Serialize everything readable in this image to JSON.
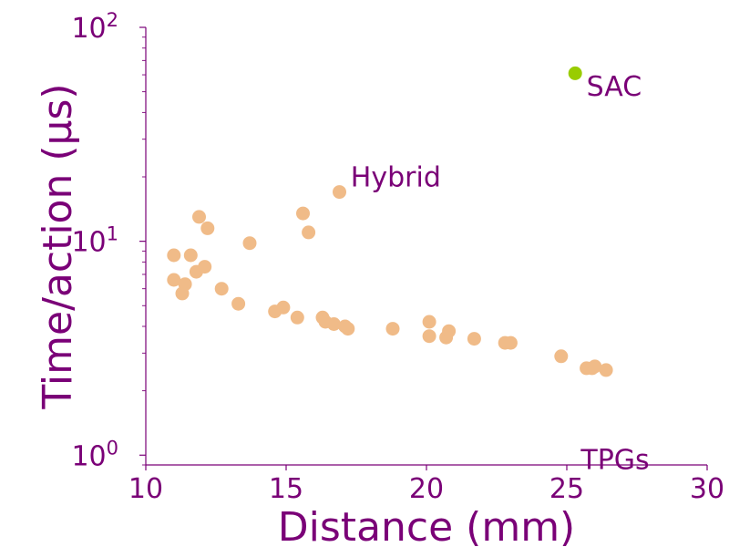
{
  "chart_data": {
    "type": "scatter",
    "title": "",
    "xlabel": "Distance (mm)",
    "ylabel": "Time/action (μs)",
    "xlim": [
      10,
      30
    ],
    "ylim": [
      0.9,
      100
    ],
    "yscale": "log",
    "grid": false,
    "x_ticks": [
      {
        "value": 10,
        "label": "10"
      },
      {
        "value": 15,
        "label": "15"
      },
      {
        "value": 20,
        "label": "20"
      },
      {
        "value": 25,
        "label": "25"
      },
      {
        "value": 30,
        "label": "30"
      }
    ],
    "y_ticks": [
      {
        "value": 1,
        "base": "10",
        "exp": "0"
      },
      {
        "value": 10,
        "base": "10",
        "exp": "1"
      },
      {
        "value": 100,
        "base": "10",
        "exp": "2"
      }
    ],
    "colors": {
      "axis": "#7a0077",
      "tpg": "#f0bb88",
      "sac": "#99cc00"
    },
    "series": [
      {
        "key": "tpg",
        "points": [
          {
            "x": 11.0,
            "y": 8.6
          },
          {
            "x": 11.0,
            "y": 6.6
          },
          {
            "x": 11.3,
            "y": 5.7
          },
          {
            "x": 11.4,
            "y": 6.3
          },
          {
            "x": 11.6,
            "y": 8.6
          },
          {
            "x": 11.8,
            "y": 7.2
          },
          {
            "x": 11.9,
            "y": 13.0
          },
          {
            "x": 12.1,
            "y": 7.6
          },
          {
            "x": 12.2,
            "y": 11.5
          },
          {
            "x": 12.7,
            "y": 6.0
          },
          {
            "x": 13.3,
            "y": 5.1
          },
          {
            "x": 13.7,
            "y": 9.8
          },
          {
            "x": 14.6,
            "y": 4.7
          },
          {
            "x": 14.9,
            "y": 4.9
          },
          {
            "x": 15.4,
            "y": 4.4
          },
          {
            "x": 15.6,
            "y": 13.5
          },
          {
            "x": 15.8,
            "y": 11.0
          },
          {
            "x": 16.3,
            "y": 4.4
          },
          {
            "x": 16.4,
            "y": 4.2
          },
          {
            "x": 16.7,
            "y": 4.1
          },
          {
            "x": 16.9,
            "y": 17.0
          },
          {
            "x": 17.1,
            "y": 4.0
          },
          {
            "x": 17.2,
            "y": 3.9
          },
          {
            "x": 18.8,
            "y": 3.9
          },
          {
            "x": 20.1,
            "y": 4.2
          },
          {
            "x": 20.1,
            "y": 3.6
          },
          {
            "x": 20.7,
            "y": 3.55
          },
          {
            "x": 20.8,
            "y": 3.8
          },
          {
            "x": 21.7,
            "y": 3.5
          },
          {
            "x": 22.8,
            "y": 3.35
          },
          {
            "x": 23.0,
            "y": 3.35
          },
          {
            "x": 24.8,
            "y": 2.9
          },
          {
            "x": 25.7,
            "y": 2.55
          },
          {
            "x": 25.9,
            "y": 2.55
          },
          {
            "x": 26.0,
            "y": 2.6
          },
          {
            "x": 26.4,
            "y": 2.5
          }
        ]
      },
      {
        "key": "sac",
        "points": [
          {
            "x": 25.3,
            "y": 61.0
          }
        ]
      }
    ],
    "annotations": [
      {
        "text": "SAC",
        "x": 25.7,
        "y": 48
      },
      {
        "text": "Hybrid",
        "x": 17.3,
        "y": 18
      },
      {
        "text": "TPGs",
        "x": 25.5,
        "y": 0.86
      }
    ]
  }
}
